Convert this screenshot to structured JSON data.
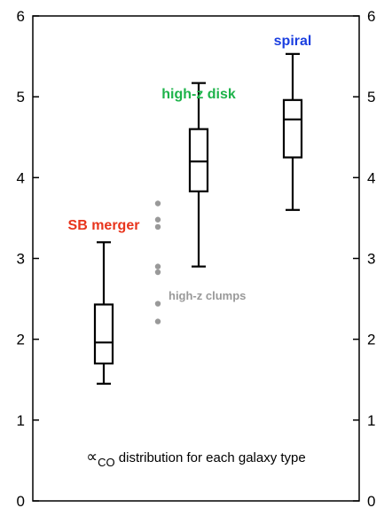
{
  "chart_data": {
    "type": "box",
    "ylim": [
      0,
      6
    ],
    "yticks": [
      "0",
      "1",
      "2",
      "3",
      "4",
      "5",
      "6"
    ],
    "ticks_on_both_sides": true,
    "grid": false,
    "boxes": [
      {
        "label": "SB merger",
        "color": "#e8341c",
        "min": 1.45,
        "q1": 1.7,
        "median": 1.96,
        "q3": 2.43,
        "max": 3.2
      },
      {
        "label": "high-z disk",
        "color": "#1db34a",
        "min": 2.9,
        "q1": 3.83,
        "median": 4.2,
        "q3": 4.6,
        "max": 5.17
      },
      {
        "label": "spiral",
        "color": "#1b3fe0",
        "min": 3.6,
        "q1": 4.25,
        "median": 4.72,
        "q3": 4.96,
        "max": 5.53
      }
    ],
    "points": {
      "label": "high-z clumps",
      "color": "#999999",
      "values": [
        3.68,
        3.48,
        3.39,
        2.9,
        2.83,
        2.44,
        2.22
      ]
    },
    "caption": {
      "symbol": "∝",
      "subscript": "CO",
      "text": " distribution for each galaxy type"
    }
  }
}
